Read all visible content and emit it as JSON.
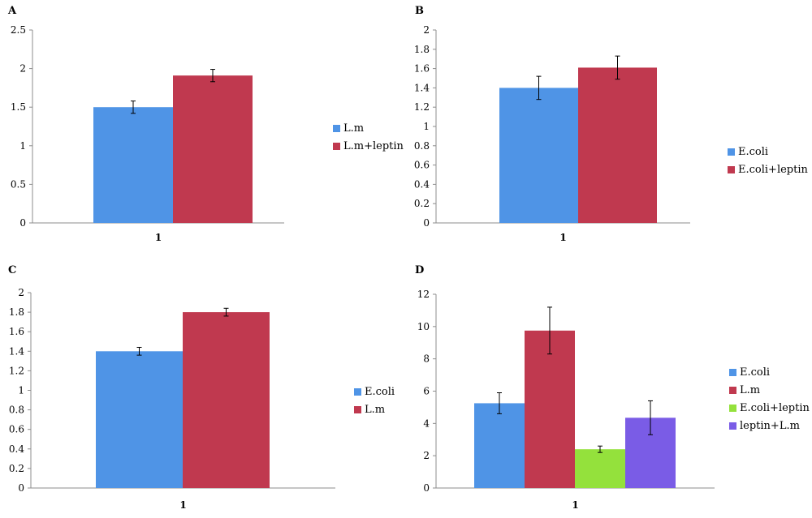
{
  "chart_data": [
    {
      "panel": "A",
      "type": "bar",
      "categories": [
        "1"
      ],
      "ylim": [
        0,
        2.5
      ],
      "yticks": [
        "0",
        "0.5",
        "1",
        "1.5",
        "2",
        "2.5"
      ],
      "series": [
        {
          "name": "L.m",
          "color": "#4f94e6",
          "values": [
            1.5
          ],
          "error": [
            0.08
          ]
        },
        {
          "name": "L.m+leptin",
          "color": "#c0394f",
          "values": [
            1.91
          ],
          "error": [
            0.08
          ]
        }
      ],
      "grid": false,
      "legend": "right"
    },
    {
      "panel": "B",
      "type": "bar",
      "categories": [
        "1"
      ],
      "ylim": [
        0,
        2
      ],
      "yticks": [
        "0",
        "0.2",
        "0.4",
        "0.6",
        "0.8",
        "1",
        "1.2",
        "1.4",
        "1.6",
        "1.8",
        "2"
      ],
      "series": [
        {
          "name": "E.coli",
          "color": "#4f94e6",
          "values": [
            1.4
          ],
          "error": [
            0.12
          ]
        },
        {
          "name": "E.coli+leptin",
          "color": "#c0394f",
          "values": [
            1.61
          ],
          "error": [
            0.12
          ]
        }
      ],
      "grid": false,
      "legend": "right"
    },
    {
      "panel": "C",
      "type": "bar",
      "categories": [
        "1"
      ],
      "ylim": [
        0,
        2
      ],
      "yticks": [
        "0",
        "0.2",
        "0.4",
        "0.6",
        "0.8",
        "1",
        "1.2",
        "1.4",
        "1.6",
        "1.8",
        "2"
      ],
      "series": [
        {
          "name": "E.coli",
          "color": "#4f94e6",
          "values": [
            1.4
          ],
          "error": [
            0.04
          ]
        },
        {
          "name": "L.m",
          "color": "#c0394f",
          "values": [
            1.8
          ],
          "error": [
            0.04
          ]
        }
      ],
      "grid": false,
      "legend": "right"
    },
    {
      "panel": "D",
      "type": "bar",
      "categories": [
        "1"
      ],
      "ylim": [
        0,
        12
      ],
      "yticks": [
        "0",
        "2",
        "4",
        "6",
        "8",
        "10",
        "12"
      ],
      "series": [
        {
          "name": "E.coli",
          "color": "#4f94e6",
          "values": [
            5.25
          ],
          "error": [
            0.65
          ]
        },
        {
          "name": "L.m",
          "color": "#c0394f",
          "values": [
            9.75
          ],
          "error": [
            1.45
          ]
        },
        {
          "name": "E.coli+leptin",
          "color": "#94e13c",
          "values": [
            2.4
          ],
          "error": [
            0.2
          ]
        },
        {
          "name": "leptin+L.m",
          "color": "#7a5ce6",
          "values": [
            4.35
          ],
          "error": [
            1.05
          ]
        }
      ],
      "grid": false,
      "legend": "right"
    }
  ]
}
